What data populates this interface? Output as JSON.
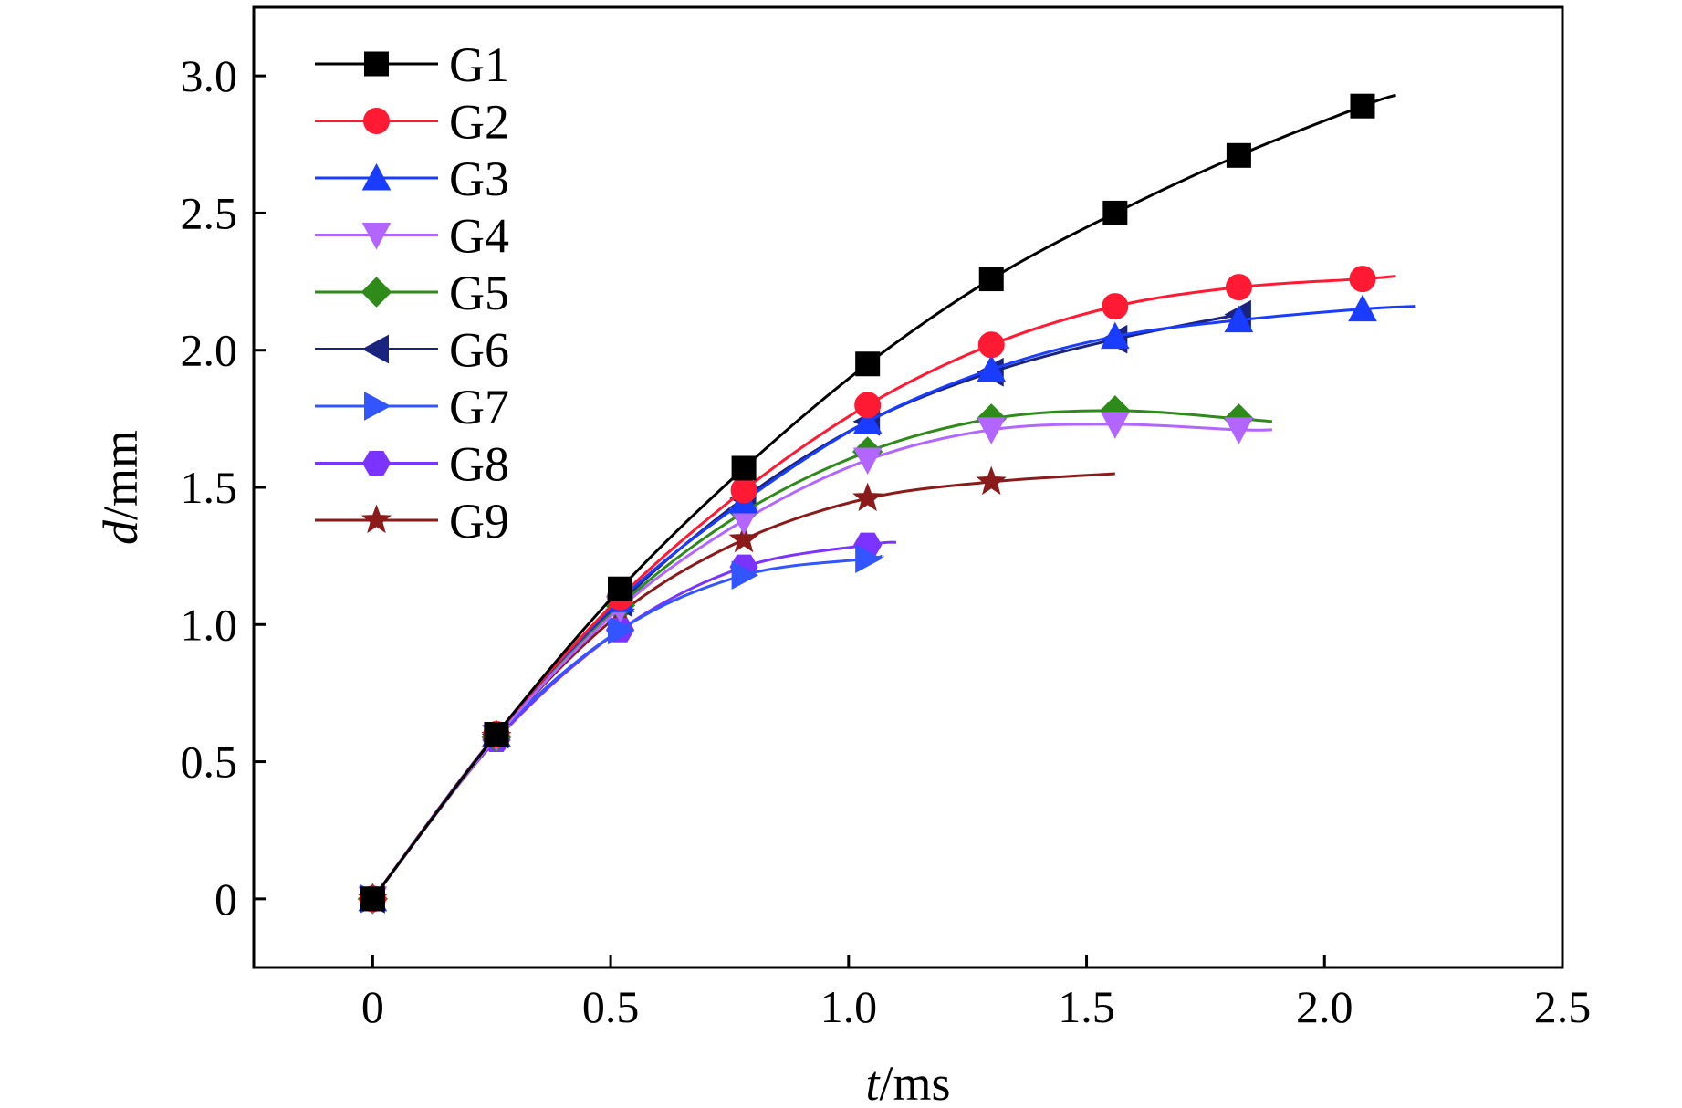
{
  "chart_data": {
    "type": "line",
    "xlabel_var": "t",
    "xlabel_unit": "/ms",
    "ylabel_var": "d",
    "ylabel_unit": "/mm",
    "xlim": [
      -0.25,
      2.5
    ],
    "ylim": [
      -0.25,
      3.25
    ],
    "xticks": [
      0,
      0.5,
      1.0,
      1.5,
      2.0,
      2.5
    ],
    "xtick_labels": [
      "0",
      "0.5",
      "1.0",
      "1.5",
      "2.0",
      "2.5"
    ],
    "yticks": [
      0,
      0.5,
      1.0,
      1.5,
      2.0,
      2.5,
      3.0
    ],
    "ytick_labels": [
      "0",
      "0.5",
      "1.0",
      "1.5",
      "2.0",
      "2.5",
      "3.0"
    ],
    "legend_position": "top-left",
    "series": [
      {
        "name": "G1",
        "color": "#000000",
        "marker": "square",
        "x": [
          0,
          0.26,
          0.52,
          0.78,
          1.04,
          1.3,
          1.56,
          1.82,
          2.08
        ],
        "y": [
          0,
          0.6,
          1.13,
          1.57,
          1.95,
          2.26,
          2.5,
          2.71,
          2.89
        ],
        "curve_end": [
          2.15,
          2.93
        ]
      },
      {
        "name": "G2",
        "color": "#ff1a33",
        "marker": "circle",
        "x": [
          0,
          0.26,
          0.52,
          0.78,
          1.04,
          1.3,
          1.56,
          1.82,
          2.08
        ],
        "y": [
          0,
          0.6,
          1.1,
          1.49,
          1.8,
          2.02,
          2.16,
          2.23,
          2.26
        ],
        "curve_end": [
          2.15,
          2.27
        ]
      },
      {
        "name": "G3",
        "color": "#1a3cff",
        "marker": "triangle-up",
        "x": [
          0,
          0.26,
          0.52,
          0.78,
          1.04,
          1.3,
          1.56,
          1.82,
          2.08
        ],
        "y": [
          0,
          0.6,
          1.09,
          1.45,
          1.74,
          1.93,
          2.05,
          2.11,
          2.15
        ],
        "curve_end": [
          2.19,
          2.16
        ]
      },
      {
        "name": "G4",
        "color": "#b266ff",
        "marker": "triangle-down",
        "x": [
          0,
          0.26,
          0.52,
          0.78,
          1.04,
          1.3,
          1.56,
          1.82
        ],
        "y": [
          0,
          0.59,
          1.06,
          1.38,
          1.6,
          1.71,
          1.73,
          1.71
        ],
        "curve_end": [
          1.89,
          1.71
        ]
      },
      {
        "name": "G5",
        "color": "#2e8b1a",
        "marker": "diamond",
        "x": [
          0,
          0.26,
          0.52,
          0.78,
          1.04,
          1.3,
          1.56,
          1.82
        ],
        "y": [
          0,
          0.59,
          1.07,
          1.41,
          1.63,
          1.75,
          1.78,
          1.75
        ],
        "curve_end": [
          1.89,
          1.74
        ]
      },
      {
        "name": "G6",
        "color": "#1a237e",
        "marker": "triangle-left",
        "x": [
          0,
          0.26,
          0.52,
          0.78,
          1.04,
          1.3,
          1.56,
          1.82
        ],
        "y": [
          0,
          0.6,
          1.08,
          1.46,
          1.74,
          1.92,
          2.04,
          2.13
        ],
        "curve_end": [
          1.82,
          2.13
        ]
      },
      {
        "name": "G7",
        "color": "#3355ff",
        "marker": "triangle-right",
        "x": [
          0,
          0.26,
          0.52,
          0.78,
          1.04
        ],
        "y": [
          0,
          0.59,
          0.98,
          1.18,
          1.24
        ],
        "curve_end": [
          1.07,
          1.25
        ]
      },
      {
        "name": "G8",
        "color": "#7b33ff",
        "marker": "hexagon",
        "x": [
          0,
          0.26,
          0.52,
          0.78,
          1.04
        ],
        "y": [
          0,
          0.58,
          0.98,
          1.21,
          1.29
        ],
        "curve_end": [
          1.1,
          1.3
        ]
      },
      {
        "name": "G9",
        "color": "#8b1a1a",
        "marker": "star",
        "x": [
          0,
          0.26,
          0.52,
          0.78,
          1.04,
          1.3
        ],
        "y": [
          0,
          0.59,
          1.04,
          1.31,
          1.46,
          1.52
        ],
        "curve_end": [
          1.56,
          1.55
        ]
      }
    ]
  }
}
